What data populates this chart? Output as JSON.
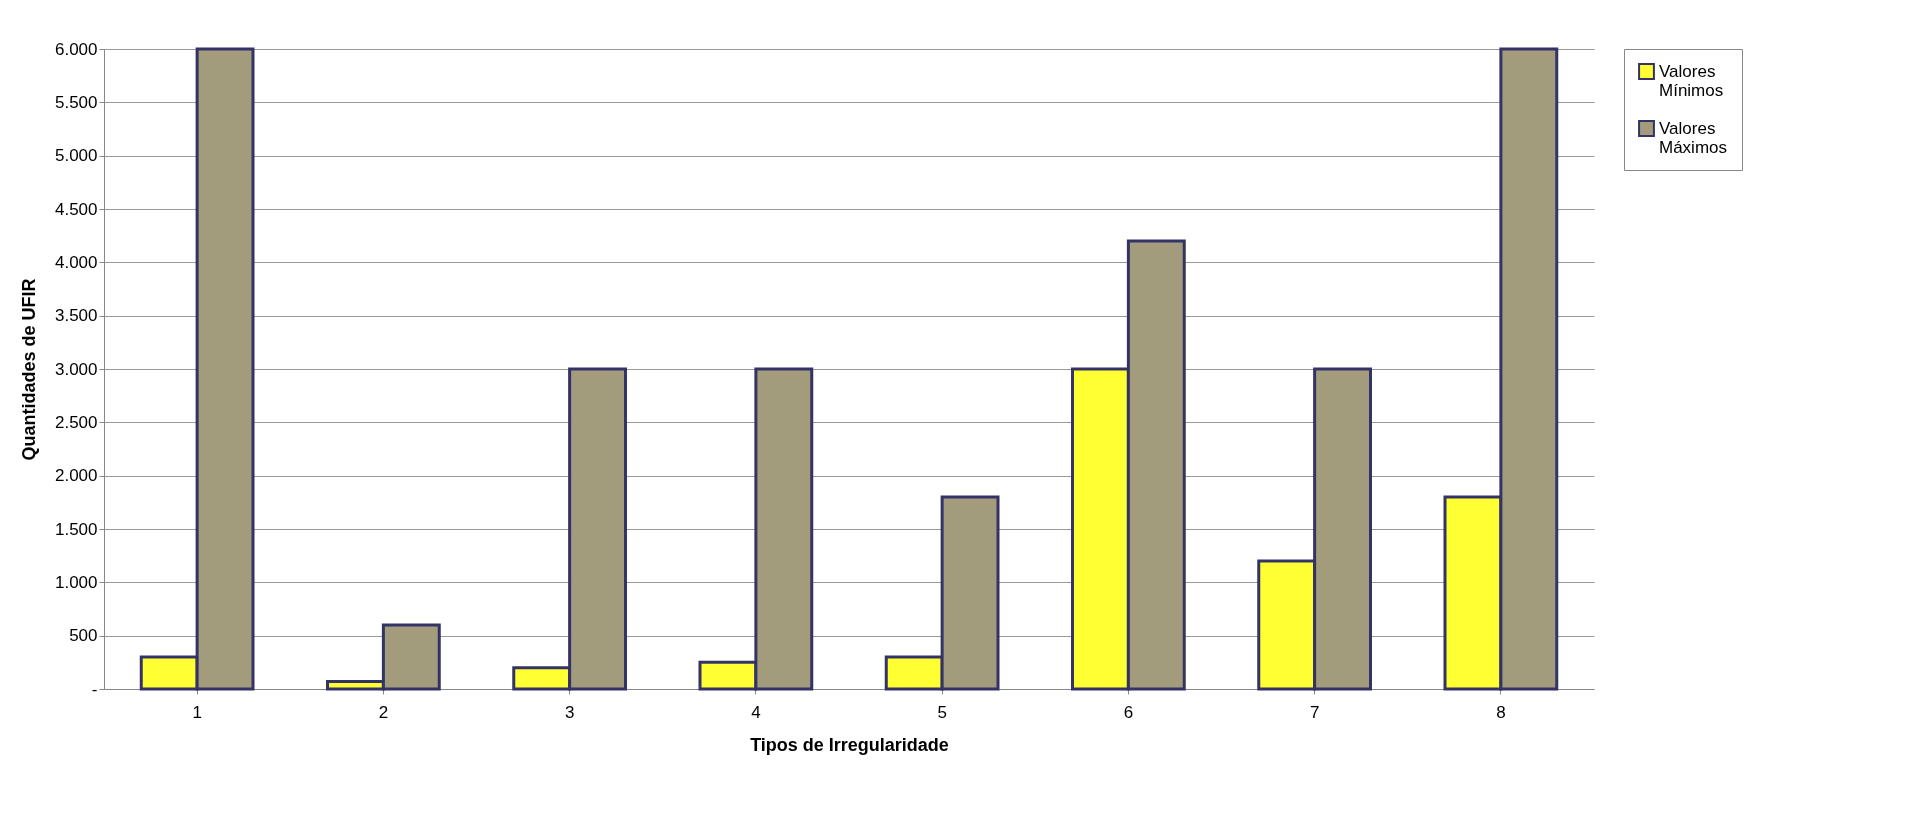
{
  "chart_data": {
    "type": "bar",
    "xlabel": "Tipos de Irregularidade",
    "ylabel": "Quantidades de UFIR",
    "categories": [
      "1",
      "2",
      "3",
      "4",
      "5",
      "6",
      "7",
      "8"
    ],
    "series": [
      {
        "name": "Valores Mínimos",
        "color": "#ffff33",
        "values": [
          300,
          70,
          200,
          250,
          300,
          3000,
          1200,
          1800
        ]
      },
      {
        "name": "Valores Máximos",
        "color": "#a39c7c",
        "values": [
          6000,
          600,
          3000,
          3000,
          1800,
          4200,
          3000,
          6000
        ]
      }
    ],
    "ylim": [
      0,
      6000
    ],
    "yticks": [
      {
        "value": 0,
        "label": "-"
      },
      {
        "value": 500,
        "label": "500"
      },
      {
        "value": 1000,
        "label": "1.000"
      },
      {
        "value": 1500,
        "label": "1.500"
      },
      {
        "value": 2000,
        "label": "2.000"
      },
      {
        "value": 2500,
        "label": "2.500"
      },
      {
        "value": 3000,
        "label": "3.000"
      },
      {
        "value": 3500,
        "label": "3.500"
      },
      {
        "value": 4000,
        "label": "4.000"
      },
      {
        "value": 4500,
        "label": "4.500"
      },
      {
        "value": 5000,
        "label": "5.000"
      },
      {
        "value": 5500,
        "label": "5.500"
      },
      {
        "value": 6000,
        "label": "6.000"
      }
    ],
    "grid": "y",
    "legend": "right"
  }
}
